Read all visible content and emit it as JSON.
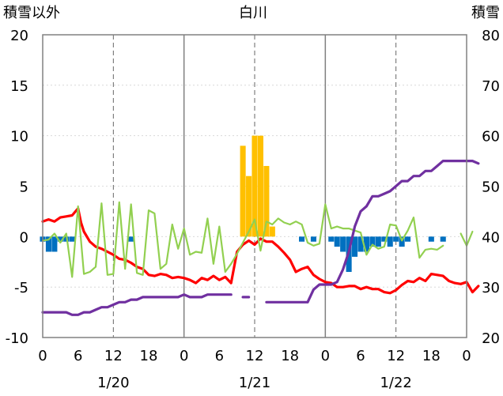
{
  "chart_data": {
    "type": "line",
    "title": "白川",
    "left_axis_label": "積雪以外",
    "right_axis_label": "積雪",
    "left_ylim": [
      -10,
      20
    ],
    "left_yticks": [
      "20",
      "15",
      "10",
      "5",
      "0",
      "-5",
      "-10"
    ],
    "right_ylim": [
      20,
      80
    ],
    "right_yticks": [
      "80",
      "70",
      "60",
      "50",
      "40",
      "30",
      "20"
    ],
    "xlim": [
      0,
      72
    ],
    "x_tick_labels": [
      "0",
      "6",
      "12",
      "18",
      "0",
      "6",
      "12",
      "18",
      "0",
      "6",
      "12",
      "18",
      "0"
    ],
    "x_tick_values": [
      0,
      6,
      12,
      18,
      24,
      30,
      36,
      42,
      48,
      54,
      60,
      66,
      72
    ],
    "date_labels": [
      {
        "text": "1/20",
        "x": 12
      },
      {
        "text": "1/21",
        "x": 36
      },
      {
        "text": "1/22",
        "x": 60
      }
    ],
    "day_boundaries": [
      24,
      48
    ],
    "noon_lines": [
      12,
      36,
      60
    ],
    "grid": true,
    "colors": {
      "precip": "#FFC000",
      "temp_diff": "#0070C0",
      "temperature": "#FF0000",
      "sunshine": "#92D050",
      "snow_depth": "#7030A0",
      "frame": "#808080",
      "grid": "#666666"
    },
    "series": [
      {
        "kind": "bar",
        "axis": "left",
        "color": "#FFC000",
        "points": [
          [
            34,
            9
          ],
          [
            35,
            6
          ],
          [
            36,
            10
          ],
          [
            37,
            10
          ],
          [
            38,
            7
          ],
          [
            39,
            1
          ]
        ]
      },
      {
        "kind": "bar",
        "axis": "left",
        "color": "#0070C0",
        "points": [
          [
            0,
            -0.5
          ],
          [
            1,
            -1.5
          ],
          [
            2,
            -1.5
          ],
          [
            3,
            -0.5
          ],
          [
            4,
            -0.5
          ],
          [
            5,
            -0.5
          ],
          [
            15,
            -0.5
          ],
          [
            44,
            -0.5
          ],
          [
            46,
            -0.5
          ],
          [
            49,
            -0.5
          ],
          [
            50,
            -1
          ],
          [
            51,
            -1.5
          ],
          [
            52,
            -3.5
          ],
          [
            53,
            -2
          ],
          [
            54,
            -1.5
          ],
          [
            55,
            -1.5
          ],
          [
            56,
            -1
          ],
          [
            57,
            -1
          ],
          [
            58,
            -0.5
          ],
          [
            59,
            -1
          ],
          [
            60,
            -0.5
          ],
          [
            61,
            -1
          ],
          [
            62,
            -0.5
          ],
          [
            66,
            -0.5
          ],
          [
            68,
            -0.5
          ]
        ]
      },
      {
        "kind": "line",
        "axis": "left",
        "color": "#FF0000",
        "segments": [
          [
            [
              0,
              1.5
            ],
            [
              1,
              1.7
            ],
            [
              2,
              1.5
            ],
            [
              3,
              1.9
            ],
            [
              4,
              2.0
            ],
            [
              5,
              2.1
            ],
            [
              6,
              2.8
            ],
            [
              6.5,
              1.4
            ],
            [
              7,
              0.5
            ],
            [
              8,
              -0.5
            ],
            [
              9,
              -1.0
            ],
            [
              10,
              -1.2
            ],
            [
              11,
              -1.5
            ],
            [
              12,
              -1.8
            ],
            [
              13,
              -2.2
            ],
            [
              14,
              -2.3
            ],
            [
              15,
              -2.6
            ],
            [
              16,
              -3.0
            ],
            [
              17,
              -3.2
            ],
            [
              18,
              -3.8
            ],
            [
              19,
              -3.9
            ],
            [
              20,
              -3.7
            ],
            [
              21,
              -3.8
            ],
            [
              22,
              -4.1
            ],
            [
              23,
              -4.0
            ],
            [
              24,
              -4.1
            ],
            [
              25,
              -4.3
            ],
            [
              26,
              -4.6
            ],
            [
              27,
              -4.1
            ],
            [
              28,
              -4.3
            ],
            [
              29,
              -3.9
            ],
            [
              30,
              -4.3
            ],
            [
              31,
              -4.0
            ],
            [
              32,
              -4.6
            ],
            [
              33,
              -1.5
            ],
            [
              34,
              -0.8
            ],
            [
              35,
              -0.4
            ],
            [
              36,
              -0.8
            ],
            [
              37,
              -0.2
            ],
            [
              38,
              -0.5
            ],
            [
              39,
              -0.5
            ],
            [
              40,
              -1.0
            ],
            [
              41,
              -1.6
            ],
            [
              42,
              -2.3
            ],
            [
              43,
              -3.5
            ],
            [
              44,
              -3.2
            ],
            [
              45,
              -3.0
            ],
            [
              46,
              -3.8
            ],
            [
              47,
              -4.2
            ],
            [
              48,
              -4.5
            ],
            [
              49,
              -4.6
            ],
            [
              50,
              -5.0
            ],
            [
              51,
              -5.0
            ],
            [
              52,
              -4.9
            ],
            [
              53,
              -4.9
            ],
            [
              54,
              -5.2
            ],
            [
              55,
              -5.0
            ],
            [
              56,
              -5.2
            ],
            [
              57,
              -5.2
            ],
            [
              58,
              -5.5
            ],
            [
              59,
              -5.6
            ],
            [
              60,
              -5.3
            ],
            [
              61,
              -4.8
            ],
            [
              62,
              -4.4
            ],
            [
              63,
              -4.5
            ],
            [
              64,
              -4.1
            ],
            [
              65,
              -4.4
            ],
            [
              66,
              -3.7
            ],
            [
              67,
              -3.8
            ],
            [
              68,
              -3.9
            ],
            [
              69,
              -4.4
            ],
            [
              70,
              -4.6
            ],
            [
              71,
              -4.7
            ],
            [
              72,
              -4.5
            ],
            [
              73,
              -5.5
            ],
            [
              74,
              -4.9
            ]
          ]
        ]
      },
      {
        "kind": "line",
        "axis": "left",
        "color": "#92D050",
        "segments": [
          [
            [
              0,
              -0.4
            ],
            [
              1,
              -0.3
            ],
            [
              2,
              0.3
            ],
            [
              3,
              -0.6
            ],
            [
              4,
              0.3
            ],
            [
              5,
              -4.0
            ],
            [
              6,
              3.0
            ],
            [
              7,
              -3.7
            ],
            [
              8,
              -3.5
            ],
            [
              9,
              -3.0
            ],
            [
              10,
              3.3
            ],
            [
              11,
              -3.8
            ],
            [
              12,
              -3.7
            ],
            [
              13,
              3.4
            ],
            [
              14,
              -3.2
            ],
            [
              15,
              3.2
            ],
            [
              16,
              -3.6
            ],
            [
              17,
              -3.8
            ],
            [
              18,
              2.6
            ],
            [
              19,
              2.3
            ],
            [
              20,
              -3.2
            ],
            [
              21,
              -2.7
            ],
            [
              22,
              1.2
            ],
            [
              23,
              -1.2
            ],
            [
              24,
              0.8
            ],
            [
              25,
              -1.8
            ],
            [
              26,
              -1.5
            ],
            [
              27,
              -1.6
            ],
            [
              28,
              1.8
            ],
            [
              29,
              -2.7
            ],
            [
              30,
              1.0
            ],
            [
              31,
              -3.5
            ],
            [
              32,
              -2.7
            ],
            [
              33,
              -1.7
            ],
            [
              34,
              -0.6
            ],
            [
              35,
              0.5
            ],
            [
              36,
              1.7
            ],
            [
              37,
              -1.4
            ],
            [
              38,
              1.5
            ],
            [
              39,
              1.2
            ],
            [
              40,
              1.8
            ],
            [
              41,
              1.4
            ],
            [
              42,
              1.2
            ],
            [
              43,
              1.5
            ],
            [
              44,
              1.2
            ],
            [
              45,
              -0.6
            ],
            [
              46,
              -0.9
            ],
            [
              47,
              -0.7
            ],
            [
              48,
              3.2
            ],
            [
              49,
              0.8
            ],
            [
              50,
              1.0
            ],
            [
              51,
              0.8
            ],
            [
              52,
              0.8
            ],
            [
              53,
              0.6
            ],
            [
              54,
              0.4
            ],
            [
              55,
              -1.8
            ],
            [
              56,
              -0.8
            ],
            [
              57,
              -1.2
            ],
            [
              58,
              -1.0
            ],
            [
              59,
              1.2
            ],
            [
              60,
              1.1
            ],
            [
              61,
              -0.4
            ],
            [
              62,
              0.6
            ],
            [
              63,
              1.9
            ],
            [
              64,
              -2.1
            ],
            [
              65,
              -1.3
            ],
            [
              66,
              -1.2
            ],
            [
              67,
              -1.3
            ],
            [
              68,
              -0.9
            ]
          ],
          [
            [
              71,
              0.3
            ],
            [
              72,
              -0.9
            ],
            [
              73,
              0.5
            ]
          ]
        ]
      },
      {
        "kind": "line",
        "axis": "right",
        "color": "#7030A0",
        "segments": [
          [
            [
              0,
              25
            ],
            [
              1,
              25
            ],
            [
              2,
              25
            ],
            [
              3,
              25
            ],
            [
              4,
              25
            ],
            [
              5,
              24.5
            ],
            [
              6,
              24.5
            ],
            [
              7,
              25
            ],
            [
              8,
              25
            ],
            [
              9,
              25.5
            ],
            [
              10,
              26
            ],
            [
              11,
              26
            ],
            [
              12,
              26.5
            ],
            [
              13,
              27
            ],
            [
              14,
              27
            ],
            [
              15,
              27.5
            ],
            [
              16,
              27.5
            ],
            [
              17,
              28
            ],
            [
              18,
              28
            ],
            [
              19,
              28
            ],
            [
              20,
              28
            ],
            [
              21,
              28
            ],
            [
              22,
              28
            ],
            [
              23,
              28
            ],
            [
              24,
              28.5
            ],
            [
              25,
              28
            ],
            [
              26,
              28
            ],
            [
              27,
              28
            ],
            [
              28,
              28.5
            ],
            [
              29,
              28.5
            ],
            [
              30,
              28.5
            ],
            [
              31,
              28.5
            ],
            [
              32,
              28.5
            ]
          ],
          [
            [
              34,
              28
            ],
            [
              35,
              28
            ]
          ],
          [
            [
              38,
              27
            ],
            [
              39,
              27
            ],
            [
              40,
              27
            ],
            [
              41,
              27
            ],
            [
              42,
              27
            ],
            [
              43,
              27
            ],
            [
              44,
              27
            ],
            [
              45,
              27
            ],
            [
              46,
              29.5
            ],
            [
              47,
              30.5
            ],
            [
              48,
              30.5
            ],
            [
              49,
              30.5
            ],
            [
              50,
              31
            ],
            [
              51,
              33.5
            ],
            [
              52,
              37
            ],
            [
              53,
              42
            ],
            [
              54,
              45
            ],
            [
              55,
              46
            ],
            [
              56,
              48
            ],
            [
              57,
              48
            ],
            [
              58,
              48.5
            ],
            [
              59,
              49
            ],
            [
              60,
              50
            ],
            [
              61,
              51
            ],
            [
              62,
              51
            ],
            [
              63,
              52
            ],
            [
              64,
              52
            ],
            [
              65,
              53
            ],
            [
              66,
              53
            ],
            [
              67,
              54
            ],
            [
              68,
              55
            ],
            [
              69,
              55
            ],
            [
              70,
              55
            ],
            [
              71,
              55
            ],
            [
              72,
              55
            ],
            [
              73,
              55
            ],
            [
              74,
              54.5
            ]
          ]
        ]
      }
    ]
  }
}
